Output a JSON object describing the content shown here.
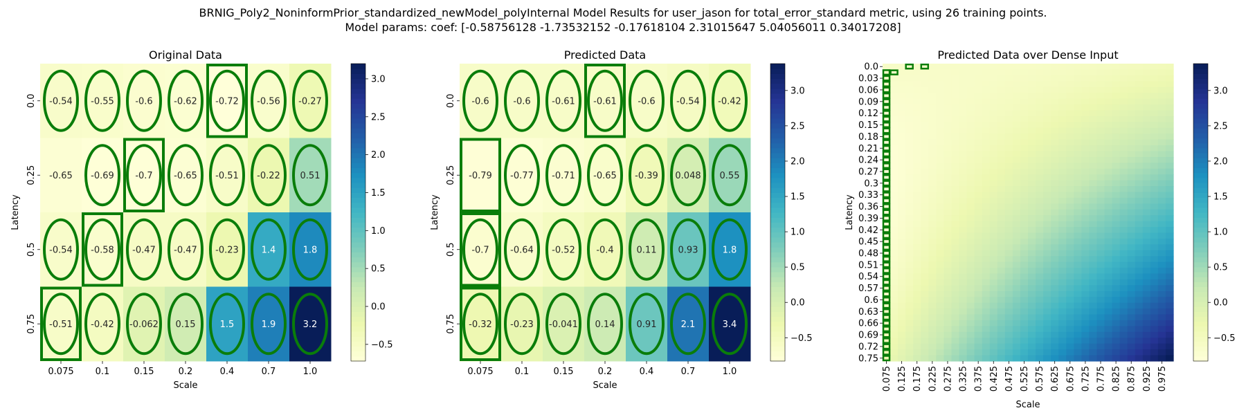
{
  "figure": {
    "suptitle_line1": "BRNIG_Poly2_NoninformPrior_standardized_newModel_polyInternal Model Results for user_jason for total_error_standard metric, using 26 training points.",
    "suptitle_line2": "Model params: coef: [-0.58756128 -1.73532152 -0.17618104  2.31015647  5.04056011  0.34017208]"
  },
  "colors": {
    "cmap": "YlGnBu",
    "marker": "#0a7d0a"
  },
  "chart_data": [
    {
      "type": "heatmap",
      "title": "Original Data",
      "xlabel": "Scale",
      "ylabel": "Latency",
      "x": [
        "0.075",
        "0.1",
        "0.15",
        "0.2",
        "0.4",
        "0.7",
        "1.0"
      ],
      "y": [
        "0.0",
        "0.25",
        "0.5",
        "0.75"
      ],
      "values": [
        [
          -0.54,
          -0.55,
          -0.6,
          -0.62,
          -0.72,
          -0.56,
          -0.27
        ],
        [
          -0.65,
          -0.69,
          -0.7,
          -0.65,
          -0.51,
          -0.22,
          0.51
        ],
        [
          -0.54,
          -0.58,
          -0.47,
          -0.47,
          -0.23,
          1.4,
          1.8
        ],
        [
          -0.51,
          -0.42,
          -0.062,
          0.15,
          1.5,
          1.9,
          3.2
        ]
      ],
      "vmin": -0.72,
      "vmax": 3.2,
      "colorbar_ticks": [
        -0.5,
        0.0,
        0.5,
        1.0,
        1.5,
        2.0,
        2.5,
        3.0
      ],
      "colorbar_tick_labels": [
        "−0.5",
        "0.0",
        "0.5",
        "1.0",
        "1.5",
        "2.0",
        "2.5",
        "3.0"
      ],
      "ellipse_cells": [
        [
          0,
          0
        ],
        [
          0,
          1
        ],
        [
          0,
          2
        ],
        [
          0,
          3
        ],
        [
          0,
          4
        ],
        [
          0,
          5
        ],
        [
          0,
          6
        ],
        [
          1,
          1
        ],
        [
          1,
          2
        ],
        [
          1,
          3
        ],
        [
          1,
          4
        ],
        [
          1,
          5
        ],
        [
          1,
          6
        ],
        [
          2,
          0
        ],
        [
          2,
          1
        ],
        [
          2,
          2
        ],
        [
          2,
          3
        ],
        [
          2,
          4
        ],
        [
          2,
          5
        ],
        [
          2,
          6
        ],
        [
          3,
          0
        ],
        [
          3,
          1
        ],
        [
          3,
          2
        ],
        [
          3,
          3
        ],
        [
          3,
          4
        ],
        [
          3,
          5
        ],
        [
          3,
          6
        ]
      ],
      "rect_cells": [
        [
          0,
          4
        ],
        [
          1,
          2
        ],
        [
          2,
          1
        ],
        [
          3,
          0
        ]
      ]
    },
    {
      "type": "heatmap",
      "title": "Predicted Data",
      "xlabel": "Scale",
      "ylabel": "Latency",
      "x": [
        "0.075",
        "0.1",
        "0.15",
        "0.2",
        "0.4",
        "0.7",
        "1.0"
      ],
      "y": [
        "0.0",
        "0.25",
        "0.5",
        "0.75"
      ],
      "values": [
        [
          -0.6,
          -0.6,
          -0.61,
          -0.61,
          -0.6,
          -0.54,
          -0.42
        ],
        [
          -0.79,
          -0.77,
          -0.71,
          -0.65,
          -0.39,
          0.048,
          0.55
        ],
        [
          -0.7,
          -0.64,
          -0.52,
          -0.4,
          0.11,
          0.93,
          1.8
        ],
        [
          -0.32,
          -0.23,
          -0.041,
          0.14,
          0.91,
          2.1,
          3.4
        ]
      ],
      "vmin": -0.83,
      "vmax": 3.38,
      "colorbar_ticks": [
        -0.5,
        0.0,
        0.5,
        1.0,
        1.5,
        2.0,
        2.5,
        3.0
      ],
      "colorbar_tick_labels": [
        "−0.5",
        "0.0",
        "0.5",
        "1.0",
        "1.5",
        "2.0",
        "2.5",
        "3.0"
      ],
      "ellipse_cells": [
        [
          0,
          0
        ],
        [
          0,
          1
        ],
        [
          0,
          2
        ],
        [
          0,
          3
        ],
        [
          0,
          4
        ],
        [
          0,
          5
        ],
        [
          0,
          6
        ],
        [
          1,
          1
        ],
        [
          1,
          2
        ],
        [
          1,
          3
        ],
        [
          1,
          4
        ],
        [
          1,
          5
        ],
        [
          1,
          6
        ],
        [
          2,
          0
        ],
        [
          2,
          1
        ],
        [
          2,
          2
        ],
        [
          2,
          3
        ],
        [
          2,
          4
        ],
        [
          2,
          5
        ],
        [
          2,
          6
        ],
        [
          3,
          0
        ],
        [
          3,
          1
        ],
        [
          3,
          2
        ],
        [
          3,
          3
        ],
        [
          3,
          4
        ],
        [
          3,
          5
        ],
        [
          3,
          6
        ]
      ],
      "rect_cells": [
        [
          0,
          3
        ],
        [
          1,
          0
        ],
        [
          2,
          0
        ],
        [
          3,
          0
        ]
      ]
    },
    {
      "type": "heatmap",
      "title": "Predicted Data over Dense Input",
      "xlabel": "Scale",
      "ylabel": "Latency",
      "x_ticks": [
        "0.075",
        "0.125",
        "0.175",
        "0.225",
        "0.275",
        "0.325",
        "0.375",
        "0.425",
        "0.475",
        "0.525",
        "0.575",
        "0.625",
        "0.675",
        "0.725",
        "0.775",
        "0.825",
        "0.875",
        "0.925",
        "0.975"
      ],
      "y_ticks": [
        "0.0",
        "0.03",
        "0.06",
        "0.09",
        "0.12",
        "0.15",
        "0.18",
        "0.21",
        "0.24",
        "0.27",
        "0.3",
        "0.33",
        "0.36",
        "0.39",
        "0.42",
        "0.45",
        "0.48",
        "0.51",
        "0.54",
        "0.57",
        "0.6",
        "0.63",
        "0.66",
        "0.69",
        "0.72",
        "0.75"
      ],
      "x_range": [
        0.075,
        1.0
      ],
      "y_range": [
        0.0,
        0.75
      ],
      "grid_cols": 38,
      "grid_rows": 51,
      "model_coef": [
        -0.58756128,
        -1.73532152,
        -0.17618104,
        2.31015647,
        5.04056011,
        0.34017208
      ],
      "vmin": -0.83,
      "vmax": 3.38,
      "colorbar_ticks": [
        -0.5,
        0.0,
        0.5,
        1.0,
        1.5,
        2.0,
        2.5,
        3.0
      ],
      "colorbar_tick_labels": [
        "−0.5",
        "0.0",
        "0.5",
        "1.0",
        "1.5",
        "2.0",
        "2.5",
        "3.0"
      ],
      "marked_points": [
        {
          "x": 0.1,
          "y": 0.015
        },
        {
          "x": 0.15,
          "y": 0.0
        },
        {
          "x": 0.2,
          "y": 0.0
        }
      ],
      "marked_column": {
        "x": 0.075,
        "from_y": 0.015,
        "to_y": 0.75
      }
    }
  ]
}
